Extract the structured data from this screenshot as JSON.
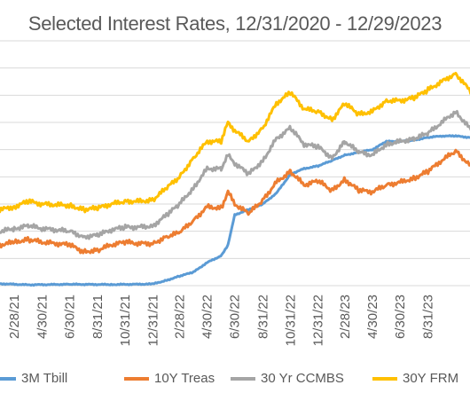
{
  "chart_data": {
    "type": "line",
    "title": "Selected Interest Rates, 12/31/2020 - 12/29/2023",
    "xlabel": "",
    "ylabel": "",
    "grid": "horizontal",
    "legend_position": "bottom",
    "x_tick_labels": [
      "2/28/21",
      "4/30/21",
      "6/30/21",
      "8/31/21",
      "10/31/21",
      "12/31/21",
      "2/28/22",
      "4/30/22",
      "6/30/22",
      "8/31/22",
      "10/31/22",
      "12/31/22",
      "2/28/23",
      "4/30/23",
      "6/30/23",
      "8/31/23"
    ],
    "x_ticks": [
      "2021-02-28",
      "2021-04-30",
      "2021-06-30",
      "2021-08-31",
      "2021-10-31",
      "2021-12-31",
      "2022-02-28",
      "2022-04-30",
      "2022-06-30",
      "2022-08-31",
      "2022-10-31",
      "2022-12-31",
      "2023-02-28",
      "2023-04-30",
      "2023-06-30",
      "2023-08-31"
    ],
    "x_range": [
      "2020-12-31",
      "2023-12-29"
    ],
    "ylim": [
      0,
      9
    ],
    "gridlines": [
      0,
      1,
      2,
      3,
      4,
      5,
      6,
      7,
      8,
      9
    ],
    "series": [
      {
        "name": "3M Tbill",
        "color": "#5B9BD5",
        "points": [
          [
            "2020-12-31",
            0.09
          ],
          [
            "2021-03-31",
            0.03
          ],
          [
            "2021-06-30",
            0.05
          ],
          [
            "2021-09-30",
            0.04
          ],
          [
            "2021-12-31",
            0.06
          ],
          [
            "2022-01-31",
            0.2
          ],
          [
            "2022-02-28",
            0.35
          ],
          [
            "2022-03-31",
            0.5
          ],
          [
            "2022-04-30",
            0.85
          ],
          [
            "2022-05-31",
            1.1
          ],
          [
            "2022-06-15",
            1.5
          ],
          [
            "2022-06-30",
            2.6
          ],
          [
            "2022-07-31",
            2.8
          ],
          [
            "2022-08-31",
            3.0
          ],
          [
            "2022-09-30",
            3.4
          ],
          [
            "2022-10-31",
            4.1
          ],
          [
            "2022-11-30",
            4.3
          ],
          [
            "2022-12-31",
            4.4
          ],
          [
            "2023-01-31",
            4.6
          ],
          [
            "2023-02-28",
            4.8
          ],
          [
            "2023-03-31",
            4.9
          ],
          [
            "2023-04-30",
            5.0
          ],
          [
            "2023-05-31",
            5.3
          ],
          [
            "2023-06-30",
            5.3
          ],
          [
            "2023-07-31",
            5.35
          ],
          [
            "2023-08-31",
            5.45
          ],
          [
            "2023-09-30",
            5.5
          ],
          [
            "2023-10-31",
            5.5
          ],
          [
            "2023-11-30",
            5.45
          ],
          [
            "2023-12-29",
            5.4
          ]
        ]
      },
      {
        "name": "10Y Treas",
        "color": "#ED7D31",
        "points": [
          [
            "2020-12-31",
            1.4
          ],
          [
            "2021-02-28",
            1.6
          ],
          [
            "2021-03-31",
            1.7
          ],
          [
            "2021-04-30",
            1.6
          ],
          [
            "2021-06-30",
            1.5
          ],
          [
            "2021-07-31",
            1.25
          ],
          [
            "2021-08-31",
            1.3
          ],
          [
            "2021-09-30",
            1.5
          ],
          [
            "2021-10-31",
            1.6
          ],
          [
            "2021-11-30",
            1.55
          ],
          [
            "2021-12-31",
            1.55
          ],
          [
            "2022-01-31",
            1.8
          ],
          [
            "2022-02-28",
            1.95
          ],
          [
            "2022-03-31",
            2.4
          ],
          [
            "2022-04-30",
            2.9
          ],
          [
            "2022-05-31",
            2.85
          ],
          [
            "2022-06-15",
            3.45
          ],
          [
            "2022-06-30",
            3.0
          ],
          [
            "2022-07-31",
            2.65
          ],
          [
            "2022-08-31",
            3.15
          ],
          [
            "2022-09-30",
            3.8
          ],
          [
            "2022-10-31",
            4.2
          ],
          [
            "2022-11-30",
            3.7
          ],
          [
            "2022-12-31",
            3.85
          ],
          [
            "2023-01-31",
            3.5
          ],
          [
            "2023-02-28",
            3.9
          ],
          [
            "2023-03-31",
            3.5
          ],
          [
            "2023-04-30",
            3.45
          ],
          [
            "2023-05-31",
            3.7
          ],
          [
            "2023-06-30",
            3.8
          ],
          [
            "2023-07-31",
            3.95
          ],
          [
            "2023-08-31",
            4.2
          ],
          [
            "2023-09-30",
            4.6
          ],
          [
            "2023-10-31",
            4.95
          ],
          [
            "2023-11-30",
            4.45
          ],
          [
            "2023-12-29",
            3.9
          ]
        ]
      },
      {
        "name": "30 Yr CCMBS",
        "color": "#A5A5A5",
        "points": [
          [
            "2020-12-31",
            1.9
          ],
          [
            "2021-02-28",
            2.1
          ],
          [
            "2021-03-31",
            2.2
          ],
          [
            "2021-04-30",
            2.1
          ],
          [
            "2021-06-30",
            2.0
          ],
          [
            "2021-07-31",
            1.8
          ],
          [
            "2021-08-31",
            1.85
          ],
          [
            "2021-09-30",
            2.05
          ],
          [
            "2021-10-31",
            2.15
          ],
          [
            "2021-11-30",
            2.15
          ],
          [
            "2021-12-31",
            2.2
          ],
          [
            "2022-01-31",
            2.6
          ],
          [
            "2022-02-28",
            3.0
          ],
          [
            "2022-03-31",
            3.6
          ],
          [
            "2022-04-30",
            4.3
          ],
          [
            "2022-05-31",
            4.3
          ],
          [
            "2022-06-15",
            4.8
          ],
          [
            "2022-06-30",
            4.5
          ],
          [
            "2022-07-31",
            4.1
          ],
          [
            "2022-08-31",
            4.6
          ],
          [
            "2022-09-30",
            5.4
          ],
          [
            "2022-10-31",
            5.8
          ],
          [
            "2022-11-30",
            5.2
          ],
          [
            "2022-12-31",
            5.1
          ],
          [
            "2023-01-31",
            4.7
          ],
          [
            "2023-02-28",
            5.3
          ],
          [
            "2023-03-31",
            4.9
          ],
          [
            "2023-04-30",
            4.8
          ],
          [
            "2023-05-31",
            5.2
          ],
          [
            "2023-06-30",
            5.3
          ],
          [
            "2023-07-31",
            5.4
          ],
          [
            "2023-08-31",
            5.6
          ],
          [
            "2023-09-30",
            6.0
          ],
          [
            "2023-10-31",
            6.4
          ],
          [
            "2023-11-30",
            5.8
          ],
          [
            "2023-12-29",
            5.2
          ]
        ]
      },
      {
        "name": "30Y FRM",
        "color": "#FFC000",
        "points": [
          [
            "2020-12-31",
            2.7
          ],
          [
            "2021-02-28",
            2.9
          ],
          [
            "2021-03-31",
            3.1
          ],
          [
            "2021-04-30",
            3.0
          ],
          [
            "2021-06-30",
            2.95
          ],
          [
            "2021-07-31",
            2.8
          ],
          [
            "2021-08-31",
            2.85
          ],
          [
            "2021-09-30",
            3.0
          ],
          [
            "2021-10-31",
            3.1
          ],
          [
            "2021-11-30",
            3.1
          ],
          [
            "2021-12-31",
            3.15
          ],
          [
            "2022-01-31",
            3.6
          ],
          [
            "2022-02-28",
            4.0
          ],
          [
            "2022-03-31",
            4.7
          ],
          [
            "2022-04-30",
            5.3
          ],
          [
            "2022-05-31",
            5.3
          ],
          [
            "2022-06-15",
            6.0
          ],
          [
            "2022-06-30",
            5.7
          ],
          [
            "2022-07-31",
            5.3
          ],
          [
            "2022-08-31",
            5.8
          ],
          [
            "2022-09-30",
            6.7
          ],
          [
            "2022-10-31",
            7.1
          ],
          [
            "2022-11-30",
            6.5
          ],
          [
            "2022-12-31",
            6.4
          ],
          [
            "2023-01-31",
            6.1
          ],
          [
            "2023-02-28",
            6.7
          ],
          [
            "2023-03-31",
            6.3
          ],
          [
            "2023-04-30",
            6.4
          ],
          [
            "2023-05-31",
            6.8
          ],
          [
            "2023-06-30",
            6.8
          ],
          [
            "2023-07-31",
            6.9
          ],
          [
            "2023-08-31",
            7.2
          ],
          [
            "2023-09-30",
            7.5
          ],
          [
            "2023-10-31",
            7.8
          ],
          [
            "2023-11-30",
            7.2
          ],
          [
            "2023-12-29",
            6.6
          ]
        ]
      }
    ]
  }
}
